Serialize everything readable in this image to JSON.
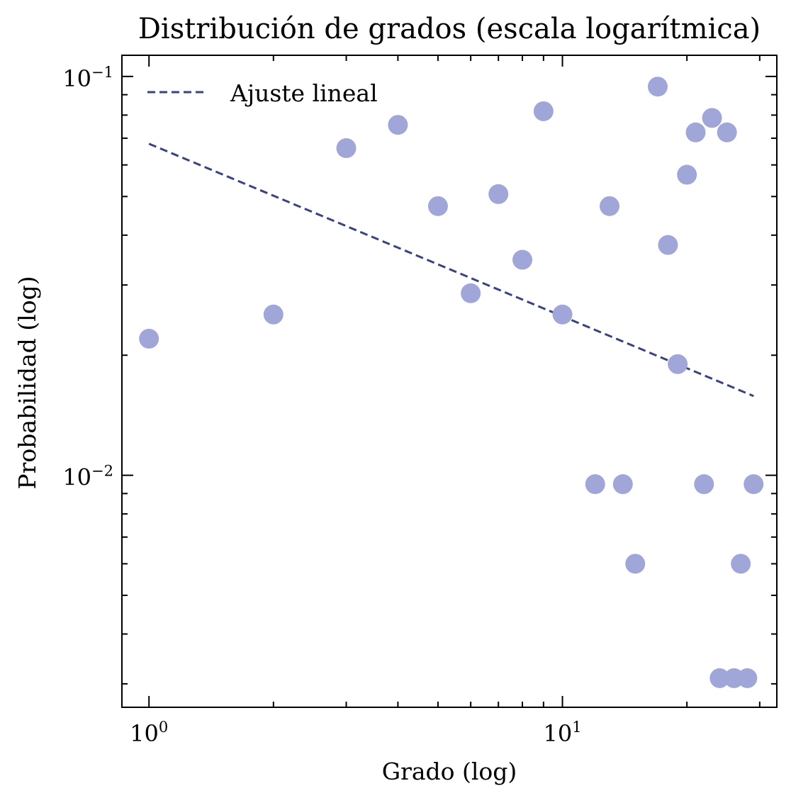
{
  "chart_data": {
    "type": "scatter",
    "title": "Distribución de grados (escala logarítmica)",
    "xlabel": "Grado (log)",
    "ylabel": "Probabilidad (log)",
    "xscale": "log",
    "yscale": "log",
    "xlim": [
      0.86,
      33.0
    ],
    "ylim": [
      0.00262,
      0.113
    ],
    "x_ticks": [
      {
        "value": 1,
        "base": "10",
        "exp": "0"
      },
      {
        "value": 10,
        "base": "10",
        "exp": "1"
      }
    ],
    "y_ticks": [
      {
        "value": 0.01,
        "base": "10",
        "exp": "−2"
      },
      {
        "value": 0.1,
        "base": "10",
        "exp": "−1"
      }
    ],
    "grid": false,
    "legend": {
      "position": "top-left",
      "entries": [
        "Ajuste lineal"
      ]
    },
    "series": [
      {
        "kind": "scatter",
        "color": "#a0a6d8",
        "points": [
          {
            "x": 1,
            "y": 0.022
          },
          {
            "x": 2,
            "y": 0.0253
          },
          {
            "x": 3,
            "y": 0.0661
          },
          {
            "x": 4,
            "y": 0.0756
          },
          {
            "x": 5,
            "y": 0.0473
          },
          {
            "x": 6,
            "y": 0.0286
          },
          {
            "x": 7,
            "y": 0.0507
          },
          {
            "x": 8,
            "y": 0.0347
          },
          {
            "x": 9,
            "y": 0.0818
          },
          {
            "x": 10,
            "y": 0.0253
          },
          {
            "x": 12,
            "y": 0.0095
          },
          {
            "x": 13,
            "y": 0.0473
          },
          {
            "x": 14,
            "y": 0.0095
          },
          {
            "x": 15,
            "y": 0.006
          },
          {
            "x": 17,
            "y": 0.0943
          },
          {
            "x": 18,
            "y": 0.0378
          },
          {
            "x": 19,
            "y": 0.019
          },
          {
            "x": 20,
            "y": 0.0567
          },
          {
            "x": 21,
            "y": 0.0724
          },
          {
            "x": 22,
            "y": 0.0095
          },
          {
            "x": 23,
            "y": 0.0787
          },
          {
            "x": 24,
            "y": 0.0031
          },
          {
            "x": 25,
            "y": 0.0724
          },
          {
            "x": 26,
            "y": 0.0031
          },
          {
            "x": 27,
            "y": 0.006
          },
          {
            "x": 28,
            "y": 0.0031
          },
          {
            "x": 29,
            "y": 0.0095
          }
        ]
      },
      {
        "kind": "line",
        "name": "Ajuste lineal",
        "style": "dashed",
        "color": "#3a4280",
        "points": [
          {
            "x": 1,
            "y": 0.0678
          },
          {
            "x": 29,
            "y": 0.0158
          }
        ]
      }
    ]
  }
}
